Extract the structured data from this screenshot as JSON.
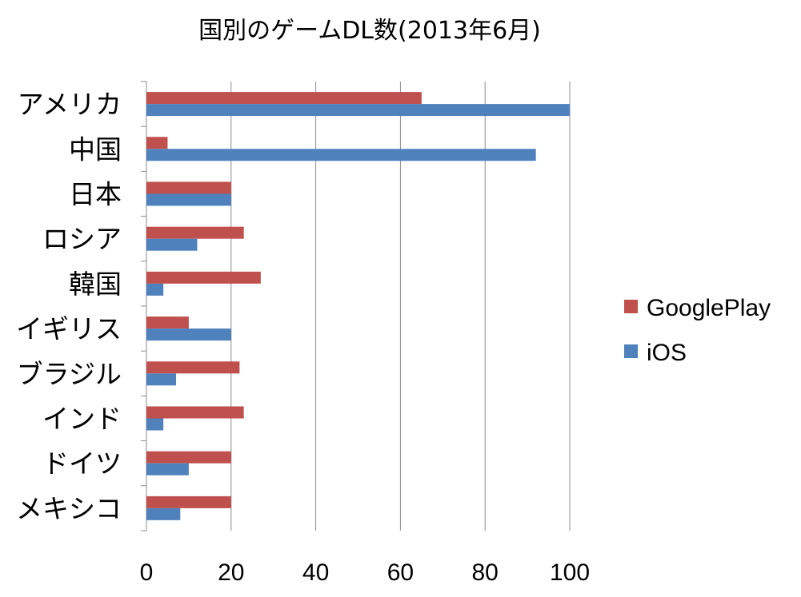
{
  "chart_data": {
    "type": "bar",
    "orientation": "horizontal",
    "title": "国別のゲームDL数(2013年6月)",
    "categories": [
      "アメリカ",
      "中国",
      "日本",
      "ロシア",
      "韓国",
      "イギリス",
      "ブラジル",
      "インド",
      "ドイツ",
      "メキシコ"
    ],
    "series": [
      {
        "name": "GooglePlay",
        "color": "#C0504D",
        "values": [
          65,
          5,
          20,
          23,
          27,
          10,
          22,
          23,
          20,
          20
        ]
      },
      {
        "name": "iOS",
        "color": "#4F81BD",
        "values": [
          100,
          92,
          20,
          12,
          4,
          20,
          7,
          4,
          10,
          8
        ]
      }
    ],
    "xlim": [
      0,
      100
    ],
    "xticks": [
      0,
      20,
      40,
      60,
      80,
      100
    ],
    "grid": true,
    "legend_position": "right"
  }
}
